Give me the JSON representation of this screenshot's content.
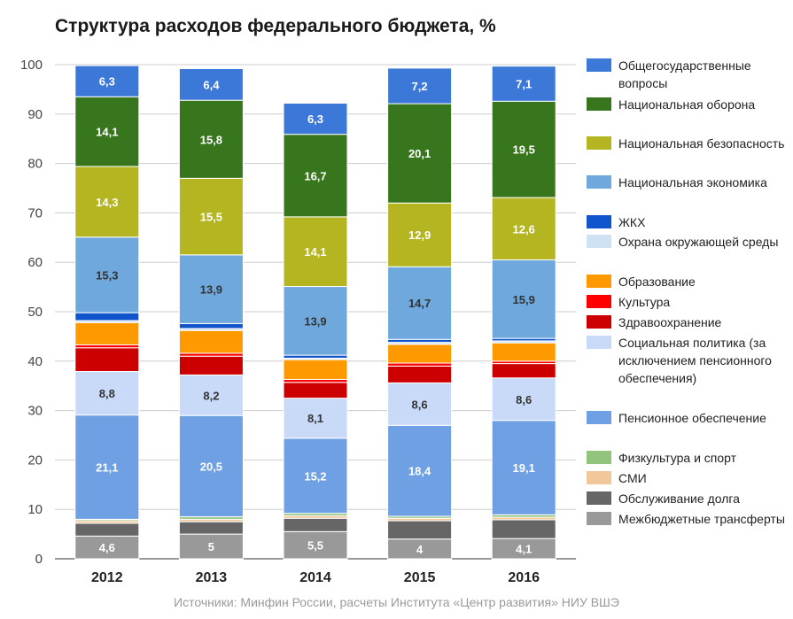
{
  "title": "Структура расходов федерального бюджета, %",
  "source": "Источники: Минфин России, расчеты Института «Центр развития» НИУ ВШЭ",
  "chart_data": {
    "type": "bar",
    "stacked": true,
    "categories": [
      "2012",
      "2013",
      "2014",
      "2015",
      "2016"
    ],
    "ylim": [
      0,
      100
    ],
    "yticks": [
      0,
      10,
      20,
      30,
      40,
      50,
      60,
      70,
      80,
      90,
      100
    ],
    "grid": true,
    "legend_position": "right",
    "series": [
      {
        "name": "Межбюджетные трансферты",
        "color": "#999999",
        "values": [
          4.6,
          5,
          5.5,
          4,
          4.1
        ],
        "labels": [
          "4,6",
          "5",
          "5,5",
          "4",
          "4,1"
        ]
      },
      {
        "name": "Обслуживание долга",
        "color": "#666666",
        "values": [
          2.6,
          2.5,
          2.7,
          3.7,
          3.8
        ],
        "labels": [
          null,
          null,
          null,
          null,
          null
        ]
      },
      {
        "name": "СМИ",
        "color": "#f2c79a",
        "values": [
          0.5,
          0.5,
          0.5,
          0.5,
          0.5
        ],
        "labels": [
          null,
          null,
          null,
          null,
          null
        ]
      },
      {
        "name": "Физкультура и спорт",
        "color": "#93c47d",
        "values": [
          0.3,
          0.5,
          0.5,
          0.4,
          0.5
        ],
        "labels": [
          null,
          null,
          null,
          null,
          null
        ]
      },
      {
        "name": "Пенсионное обеспечение",
        "color": "#6fa0e4",
        "values": [
          21.1,
          20.5,
          15.2,
          18.4,
          19.1
        ],
        "labels": [
          "21,1",
          "20,5",
          "15,2",
          "18,4",
          "19,1"
        ]
      },
      {
        "name": "Социальная политика (за исключением пенсионного обеспечения)",
        "color": "#c9daf8",
        "values": [
          8.8,
          8.2,
          8.1,
          8.6,
          8.6
        ],
        "labels": [
          "8,8",
          "8,2",
          "8,1",
          "8,6",
          "8,6"
        ]
      },
      {
        "name": "Здравоохранение",
        "color": "#cc0000",
        "values": [
          4.8,
          3.8,
          3.2,
          3.4,
          2.9
        ],
        "labels": [
          null,
          null,
          null,
          null,
          null
        ]
      },
      {
        "name": "Культура",
        "color": "#ff0000",
        "values": [
          0.6,
          0.6,
          0.6,
          0.6,
          0.5
        ],
        "labels": [
          null,
          null,
          null,
          null,
          null
        ]
      },
      {
        "name": "Образование",
        "color": "#ff9900",
        "values": [
          4.5,
          4.6,
          4.0,
          3.8,
          3.7
        ],
        "labels": [
          null,
          null,
          null,
          null,
          null
        ]
      },
      {
        "name": "Охрана окружающей среды",
        "color": "#cfe2f3",
        "values": [
          0.4,
          0.4,
          0.3,
          0.4,
          0.4
        ],
        "labels": [
          null,
          null,
          null,
          null,
          null
        ]
      },
      {
        "name": "ЖКХ",
        "color": "#1155cc",
        "values": [
          1.6,
          1.0,
          0.6,
          0.6,
          0.5
        ],
        "labels": [
          null,
          null,
          null,
          null,
          null
        ]
      },
      {
        "name": "Национальная экономика",
        "color": "#6fa8dc",
        "values": [
          15.3,
          13.9,
          13.9,
          14.7,
          15.9
        ],
        "labels": [
          "15,3",
          "13,9",
          "13,9",
          "14,7",
          "15,9"
        ]
      },
      {
        "name": "Национальная безопасность",
        "color": "#b5b521",
        "values": [
          14.3,
          15.5,
          14.1,
          12.9,
          12.6
        ],
        "labels": [
          "14,3",
          "15,5",
          "14,1",
          "12,9",
          "12,6"
        ]
      },
      {
        "name": "Национальная оборона",
        "color": "#38761d",
        "values": [
          14.1,
          15.8,
          16.7,
          20.1,
          19.5
        ],
        "labels": [
          "14,1",
          "15,8",
          "16,7",
          "20,1",
          "19,5"
        ]
      },
      {
        "name": "Общегосударственные вопросы",
        "color": "#3c78d8",
        "values": [
          6.3,
          6.4,
          6.3,
          7.2,
          7.1
        ],
        "labels": [
          "6,3",
          "6,4",
          "6,3",
          "7,2",
          "7,1"
        ]
      }
    ]
  },
  "legend": [
    {
      "label": "Общегосударственные вопросы",
      "color": "#3c78d8"
    },
    {
      "label": "Национальная оборона",
      "color": "#38761d"
    },
    {
      "label": "Национальная безопасность",
      "color": "#b5b521"
    },
    {
      "label": "Национальная экономика",
      "color": "#6fa8dc"
    },
    {
      "label": "ЖКХ",
      "color": "#1155cc"
    },
    {
      "label": "Охрана окружающей среды",
      "color": "#cfe2f3"
    },
    {
      "label": "Образование",
      "color": "#ff9900"
    },
    {
      "label": "Культура",
      "color": "#ff0000"
    },
    {
      "label": "Здравоохранение",
      "color": "#cc0000"
    },
    {
      "label": "Социальная политика (за исключением пенсионного обеспечения)",
      "color": "#c9daf8"
    },
    {
      "label": "Пенсионное обеспечение",
      "color": "#6fa0e4"
    },
    {
      "label": "Физкультура и спорт",
      "color": "#93c47d"
    },
    {
      "label": "СМИ",
      "color": "#f2c79a"
    },
    {
      "label": "Обслуживание долга",
      "color": "#666666"
    },
    {
      "label": "Межбюджетные трансферты",
      "color": "#999999"
    }
  ]
}
